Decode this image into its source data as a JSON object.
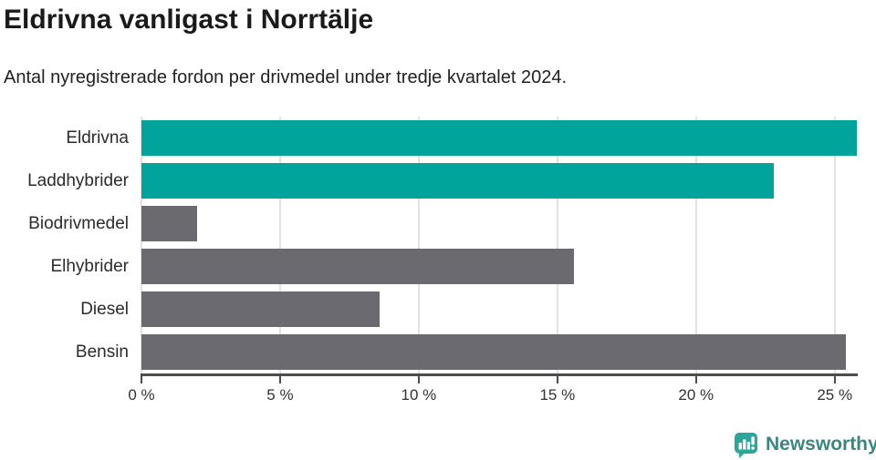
{
  "header": {
    "title": "Eldrivna vanligast i Norrtälje",
    "subtitle": "Antal nyregistrerade fordon per drivmedel under tredje kvartalet 2024."
  },
  "chart_data": {
    "type": "bar",
    "orientation": "horizontal",
    "title": "Eldrivna vanligast i Norrtälje",
    "subtitle": "Antal nyregistrerade fordon per drivmedel under tredje kvartalet 2024.",
    "categories": [
      "Eldrivna",
      "Laddhybrider",
      "Biodrivmedel",
      "Elhybrider",
      "Diesel",
      "Bensin"
    ],
    "values": [
      25.8,
      22.8,
      2.0,
      15.6,
      8.6,
      25.4
    ],
    "unit": "%",
    "bar_colors": [
      "#00a49b",
      "#00a49b",
      "#6c6a71",
      "#6c6a71",
      "#6c6a71",
      "#6c6a71"
    ],
    "xlim": [
      0,
      25.8
    ],
    "x_ticks": [
      0,
      5,
      10,
      15,
      20,
      25
    ],
    "x_tick_labels": [
      "0 %",
      "5 %",
      "10 %",
      "15 %",
      "20 %",
      "25 %"
    ],
    "xlabel": "",
    "ylabel": "",
    "grid": true,
    "legend": false
  },
  "colors": {
    "accent_teal": "#00a49b",
    "bar_gray": "#6c6a71",
    "gridline": "#e2e2e2",
    "axis": "#4d4d4d",
    "title_text": "#1a1a1a",
    "logo_teal": "#2ba69b",
    "brand_text": "#3c867f"
  },
  "footer": {
    "brand": "Newsworthy",
    "logo_icon": "newsworthy-bar-chart-bubble-icon"
  }
}
